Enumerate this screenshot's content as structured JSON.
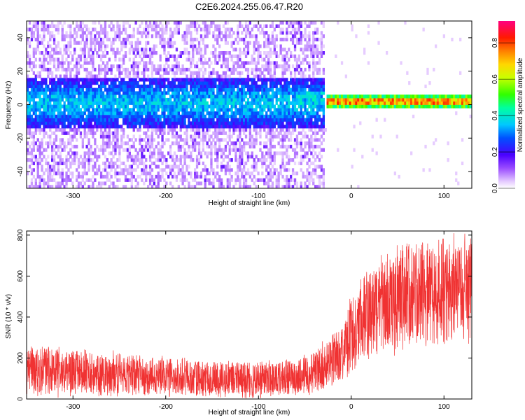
{
  "title": "C2E6.2024.255.06.47.R20",
  "colors": {
    "snr_line": "#f03232",
    "frame": "#000000",
    "background": "#ffffff"
  },
  "chart_data": [
    {
      "type": "heatmap",
      "xlabel": "Height of straight line (km)",
      "ylabel": "Frequency (Hz)",
      "xlim": [
        -350,
        130
      ],
      "ylim": [
        -50,
        50
      ],
      "xticks": [
        -300,
        -200,
        -100,
        0,
        100
      ],
      "yticks": [
        -40,
        -20,
        0,
        20,
        40
      ],
      "grid": false,
      "colormap": "rainbow (purple → red)",
      "colorbar": {
        "label": "Normalized spectral amplitude",
        "range": [
          0.0,
          0.92
        ],
        "ticks": [
          0.0,
          0.2,
          0.4,
          0.6,
          0.8
        ],
        "tick_labels": [
          "0.0",
          "0.2",
          "0.4",
          "0.6",
          "0.8"
        ]
      },
      "regions": [
        {
          "x_range": [
            -350,
            -30
          ],
          "description": "broadband noise, purple/blue, strongest near 0 Hz (±15 Hz)"
        },
        {
          "x_range": [
            -60,
            -30
          ],
          "center_freq": 3,
          "amplitude": 0.35
        },
        {
          "x_range": [
            -28,
            130
          ],
          "center_freq": 1,
          "width_hz": 4,
          "amplitude": 0.9
        }
      ]
    },
    {
      "type": "line",
      "xlabel": "Height of straight line (km)",
      "ylabel": "SNR (10 * v/v)",
      "xlim": [
        -350,
        130
      ],
      "ylim": [
        0,
        820
      ],
      "xticks": [
        -300,
        -200,
        -100,
        0,
        100
      ],
      "yticks": [
        0,
        200,
        400,
        600,
        800
      ],
      "grid": false,
      "series": [
        {
          "x": [
            -350,
            -300,
            -250,
            -200,
            -150,
            -100,
            -80,
            -60,
            -40,
            -30,
            -20,
            -10,
            0,
            10,
            20,
            30,
            40,
            60,
            80,
            100,
            130
          ],
          "mean": [
            140,
            130,
            120,
            110,
            100,
            95,
            100,
            110,
            130,
            160,
            200,
            240,
            310,
            380,
            420,
            450,
            480,
            500,
            520,
            530,
            540
          ],
          "spread": [
            130,
            120,
            110,
            100,
            90,
            90,
            90,
            95,
            110,
            130,
            140,
            160,
            190,
            220,
            240,
            250,
            260,
            270,
            280,
            280,
            280
          ]
        }
      ]
    }
  ]
}
